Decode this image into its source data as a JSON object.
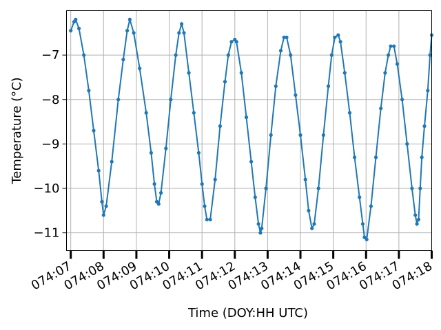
{
  "chart_data": {
    "type": "line",
    "title": "",
    "xlabel": "Time (DOY:HH UTC)",
    "ylabel": "Temperature (°C)",
    "x_tick_labels": [
      "074:07",
      "074:08",
      "074:09",
      "074:10",
      "074:11",
      "074:12",
      "074:13",
      "074:14",
      "074:15",
      "074:16",
      "074:17",
      "074:18"
    ],
    "y_ticks": [
      -11,
      -10,
      -9,
      -8,
      -7
    ],
    "y_tick_labels": [
      "−11",
      "−10",
      "−9",
      "−8",
      "−7"
    ],
    "xlim_hours": [
      6.87,
      18.0
    ],
    "ylim": [
      -11.4,
      -6.0
    ],
    "grid": true,
    "series": [
      {
        "color": "#1f77b4",
        "marker": "circle",
        "points": [
          [
            7.0,
            -6.45
          ],
          [
            7.1,
            -6.25
          ],
          [
            7.15,
            -6.2
          ],
          [
            7.25,
            -6.4
          ],
          [
            7.4,
            -7.0
          ],
          [
            7.55,
            -7.8
          ],
          [
            7.7,
            -8.7
          ],
          [
            7.85,
            -9.6
          ],
          [
            7.95,
            -10.3
          ],
          [
            8.0,
            -10.6
          ],
          [
            8.08,
            -10.4
          ],
          [
            8.25,
            -9.4
          ],
          [
            8.45,
            -8.0
          ],
          [
            8.6,
            -7.1
          ],
          [
            8.72,
            -6.45
          ],
          [
            8.8,
            -6.2
          ],
          [
            8.92,
            -6.5
          ],
          [
            9.1,
            -7.3
          ],
          [
            9.3,
            -8.3
          ],
          [
            9.45,
            -9.2
          ],
          [
            9.55,
            -9.9
          ],
          [
            9.62,
            -10.3
          ],
          [
            9.68,
            -10.35
          ],
          [
            9.75,
            -10.1
          ],
          [
            9.9,
            -9.1
          ],
          [
            10.05,
            -8.0
          ],
          [
            10.2,
            -7.0
          ],
          [
            10.3,
            -6.5
          ],
          [
            10.38,
            -6.3
          ],
          [
            10.45,
            -6.5
          ],
          [
            10.6,
            -7.4
          ],
          [
            10.75,
            -8.3
          ],
          [
            10.9,
            -9.2
          ],
          [
            11.0,
            -9.9
          ],
          [
            11.08,
            -10.4
          ],
          [
            11.15,
            -10.7
          ],
          [
            11.25,
            -10.7
          ],
          [
            11.4,
            -9.8
          ],
          [
            11.55,
            -8.6
          ],
          [
            11.7,
            -7.6
          ],
          [
            11.8,
            -7.0
          ],
          [
            11.9,
            -6.7
          ],
          [
            12.0,
            -6.65
          ],
          [
            12.05,
            -6.7
          ],
          [
            12.2,
            -7.4
          ],
          [
            12.35,
            -8.4
          ],
          [
            12.5,
            -9.4
          ],
          [
            12.62,
            -10.2
          ],
          [
            12.72,
            -10.8
          ],
          [
            12.78,
            -11.0
          ],
          [
            12.82,
            -10.9
          ],
          [
            12.95,
            -10.0
          ],
          [
            13.1,
            -8.8
          ],
          [
            13.25,
            -7.7
          ],
          [
            13.4,
            -6.9
          ],
          [
            13.5,
            -6.6
          ],
          [
            13.58,
            -6.6
          ],
          [
            13.7,
            -7.0
          ],
          [
            13.85,
            -7.9
          ],
          [
            14.0,
            -8.8
          ],
          [
            14.15,
            -9.8
          ],
          [
            14.25,
            -10.5
          ],
          [
            14.35,
            -10.9
          ],
          [
            14.42,
            -10.8
          ],
          [
            14.55,
            -10.0
          ],
          [
            14.7,
            -8.8
          ],
          [
            14.85,
            -7.7
          ],
          [
            14.95,
            -7.0
          ],
          [
            15.05,
            -6.6
          ],
          [
            15.15,
            -6.55
          ],
          [
            15.22,
            -6.7
          ],
          [
            15.35,
            -7.4
          ],
          [
            15.5,
            -8.3
          ],
          [
            15.65,
            -9.3
          ],
          [
            15.8,
            -10.2
          ],
          [
            15.9,
            -10.8
          ],
          [
            15.95,
            -11.1
          ],
          [
            16.02,
            -11.15
          ],
          [
            16.15,
            -10.4
          ],
          [
            16.3,
            -9.3
          ],
          [
            16.45,
            -8.2
          ],
          [
            16.58,
            -7.4
          ],
          [
            16.68,
            -7.0
          ],
          [
            16.75,
            -6.8
          ],
          [
            16.85,
            -6.8
          ],
          [
            16.95,
            -7.2
          ],
          [
            17.1,
            -8.0
          ],
          [
            17.25,
            -9.0
          ],
          [
            17.4,
            -10.0
          ],
          [
            17.5,
            -10.6
          ],
          [
            17.55,
            -10.8
          ],
          [
            17.6,
            -10.7
          ],
          [
            17.65,
            -10.0
          ],
          [
            17.7,
            -9.3
          ],
          [
            17.78,
            -8.6
          ],
          [
            17.88,
            -7.8
          ],
          [
            17.95,
            -7.0
          ],
          [
            18.0,
            -6.55
          ]
        ]
      }
    ]
  }
}
